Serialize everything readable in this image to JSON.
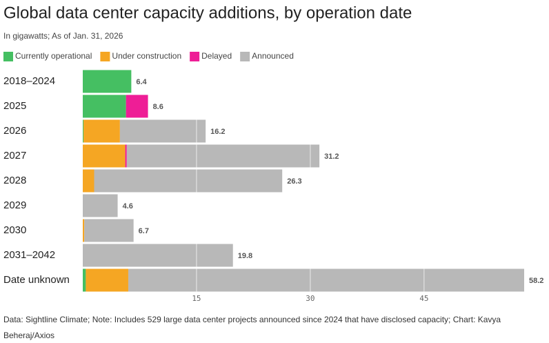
{
  "chart_data": {
    "type": "stacked-barh",
    "title": "Global data center capacity additions, by operation date",
    "subtitle": "In gigawatts; As of Jan. 31, 2026",
    "categories": [
      "2018–2024",
      "2025",
      "2026",
      "2027",
      "2028",
      "2029",
      "2030",
      "2031–2042",
      "Date unknown"
    ],
    "series": [
      {
        "name": "Currently operational",
        "color": "#45bf62",
        "values": [
          6.4,
          5.7,
          0.1,
          0,
          0,
          0,
          0,
          0,
          0.4
        ]
      },
      {
        "name": "Under construction",
        "color": "#f5a623",
        "values": [
          0,
          0,
          4.8,
          5.6,
          1.5,
          0,
          0.2,
          0,
          5.6
        ]
      },
      {
        "name": "Delayed",
        "color": "#ee1e96",
        "values": [
          0,
          2.9,
          0,
          0.2,
          0,
          0,
          0,
          0,
          0
        ]
      },
      {
        "name": "Announced",
        "color": "#b8b8b8",
        "values": [
          0,
          0,
          11.3,
          25.4,
          24.8,
          4.6,
          6.5,
          19.8,
          52.2
        ]
      }
    ],
    "totals": [
      6.4,
      8.6,
      16.2,
      31.2,
      26.3,
      4.6,
      6.7,
      19.8,
      58.2
    ],
    "xlim": [
      0,
      58.2
    ],
    "xticks": [
      15,
      30,
      45
    ],
    "grid": true,
    "legend": "top",
    "source": "Data: Sightline Climate; Note: Includes 529 large data center projects announced since 2024 that have disclosed capacity; Chart: Kavya Beheraj/Axios"
  }
}
